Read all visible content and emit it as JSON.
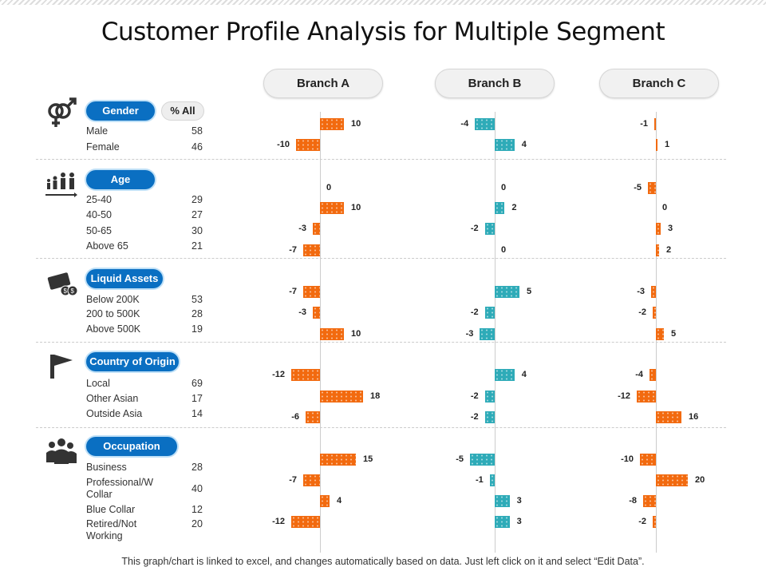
{
  "title": "Customer Profile Analysis for Multiple Segment",
  "footer": "This graph/chart is linked to excel, and changes automatically based on data. Just left click on it and select “Edit Data”.",
  "all_label": "% All",
  "colors": {
    "branch_a": "#f26a0f",
    "branch_b": "#2eabb8",
    "branch_c": "#f26a0f",
    "pill": "#0a6fc2"
  },
  "chart_data": {
    "type": "bar",
    "orientation": "horizontal",
    "branches": [
      "Branch A",
      "Branch B",
      "Branch C"
    ],
    "sections": [
      {
        "name": "Gender",
        "icon": "gender-icon",
        "items": [
          {
            "label": "Male",
            "all": "58",
            "values": [
              10,
              -4,
              -1
            ]
          },
          {
            "label": "Female",
            "all": "46",
            "values": [
              -10,
              4,
              1
            ]
          }
        ]
      },
      {
        "name": "Age",
        "icon": "age-group-icon",
        "items": [
          {
            "label": "25-40",
            "all": "29",
            "values": [
              0,
              0,
              -5
            ]
          },
          {
            "label": "40-50",
            "all": "27",
            "values": [
              10,
              2,
              0
            ]
          },
          {
            "label": "50-65",
            "all": "30",
            "values": [
              -3,
              -2,
              3
            ]
          },
          {
            "label": "Above  65",
            "all": "21",
            "values": [
              -7,
              0,
              2
            ]
          }
        ]
      },
      {
        "name": "Liquid Assets",
        "icon": "money-icon",
        "items": [
          {
            "label": "Below 200K",
            "all": "53",
            "values": [
              -7,
              5,
              -3
            ]
          },
          {
            "label": "200 to 500K",
            "all": "28",
            "values": [
              -3,
              -2,
              -2
            ]
          },
          {
            "label": "Above  500K",
            "all": "19",
            "values": [
              10,
              -3,
              5
            ]
          }
        ]
      },
      {
        "name": "Country of Origin",
        "icon": "flag-icon",
        "items": [
          {
            "label": "Local",
            "all": "69",
            "values": [
              -12,
              4,
              -4
            ]
          },
          {
            "label": "Other Asian",
            "all": "17",
            "values": [
              18,
              -2,
              -12
            ]
          },
          {
            "label": "Outside Asia",
            "all": "14",
            "values": [
              -6,
              -2,
              16
            ]
          }
        ]
      },
      {
        "name": "Occupation",
        "icon": "workers-icon",
        "items": [
          {
            "label": "Business",
            "all": "28",
            "values": [
              15,
              -5,
              -10
            ]
          },
          {
            "label": "Professional/W Collar",
            "all": "40",
            "values": [
              -7,
              -1,
              20
            ]
          },
          {
            "label": "Blue Collar",
            "all": "12",
            "values": [
              4,
              3,
              -8
            ]
          },
          {
            "label": "Retired/Not Working",
            "all": "20",
            "values": [
              -12,
              3,
              -2
            ]
          }
        ]
      }
    ]
  }
}
